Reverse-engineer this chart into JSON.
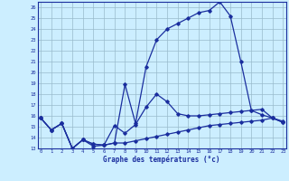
{
  "xlabel": "Graphe des températures (°c)",
  "yticks": [
    13,
    14,
    15,
    16,
    17,
    18,
    19,
    20,
    21,
    22,
    23,
    24,
    25,
    26
  ],
  "xticks": [
    0,
    1,
    2,
    3,
    4,
    5,
    6,
    7,
    8,
    9,
    10,
    11,
    12,
    13,
    14,
    15,
    16,
    17,
    18,
    19,
    20,
    21,
    22,
    23
  ],
  "bg_color": "#cceeff",
  "line_color": "#1a2e9e",
  "line1_y": [
    15.8,
    14.7,
    15.3,
    13.0,
    13.8,
    13.2,
    13.3,
    15.1,
    14.4,
    15.2,
    16.8,
    18.0,
    17.3,
    16.2,
    16.0,
    16.0,
    16.1,
    16.2,
    16.3,
    16.4,
    16.5,
    16.6,
    15.8,
    15.4
  ],
  "line2_y": [
    15.8,
    14.7,
    15.3,
    13.0,
    13.8,
    13.4,
    13.3,
    13.5,
    18.9,
    15.3,
    20.5,
    23.0,
    24.0,
    24.5,
    25.0,
    25.5,
    25.7,
    26.5,
    25.2,
    21.0,
    16.5,
    16.1,
    15.8,
    15.5
  ],
  "line3_y": [
    15.8,
    14.7,
    15.3,
    13.0,
    13.8,
    13.4,
    13.3,
    13.5,
    13.5,
    13.7,
    13.9,
    14.1,
    14.3,
    14.5,
    14.7,
    14.9,
    15.1,
    15.2,
    15.3,
    15.4,
    15.5,
    15.6,
    15.8,
    15.4
  ]
}
